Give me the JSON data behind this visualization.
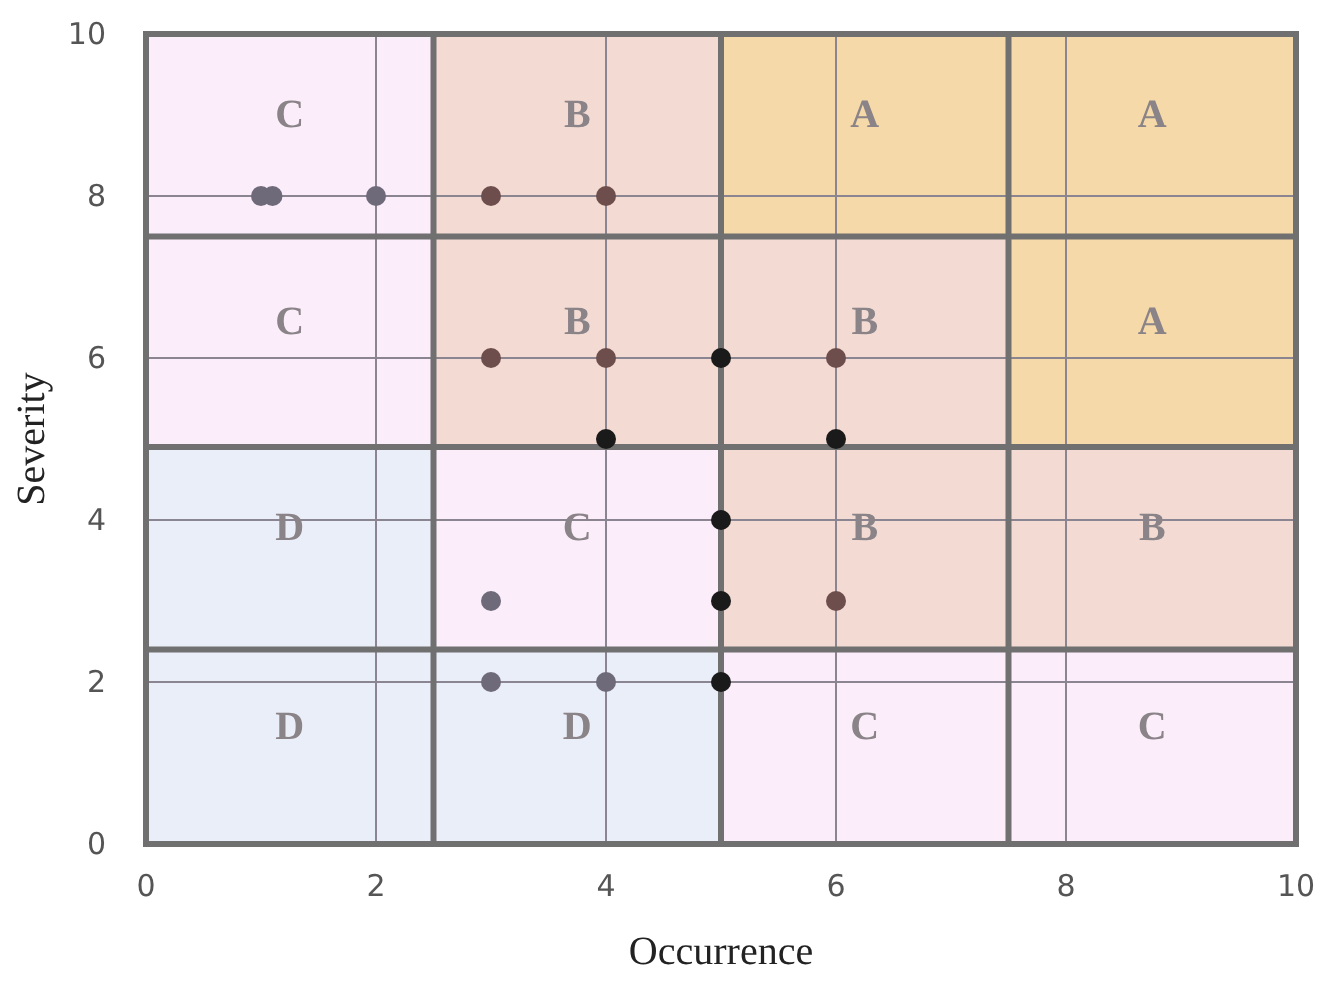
{
  "chart_data": {
    "type": "scatter",
    "xlabel": "Occurrence",
    "ylabel": "Severity",
    "xlim": [
      0,
      10
    ],
    "ylim": [
      0,
      10
    ],
    "xticks": [
      0,
      2,
      4,
      6,
      8,
      10
    ],
    "yticks": [
      0,
      2,
      4,
      6,
      8,
      10
    ],
    "grid": true,
    "marker": "circle",
    "series": [
      {
        "x": [
          1,
          1.1,
          2,
          3,
          4,
          3,
          4,
          5,
          6,
          4,
          6,
          5,
          5,
          3,
          6,
          3,
          4,
          5
        ],
        "values": [
          8,
          8,
          8,
          8,
          8,
          6,
          6,
          6,
          6,
          5,
          5,
          4,
          3,
          3,
          3,
          2,
          2,
          2
        ],
        "colors": [
          "#6e6a7a",
          "#6e6a7a",
          "#6e6a7a",
          "#6e4e4c",
          "#6e4e4c",
          "#6e4e4c",
          "#6e4e4c",
          "#1a1a1a",
          "#6e4e4c",
          "#1a1a1a",
          "#1a1a1a",
          "#1a1a1a",
          "#1a1a1a",
          "#6e6a7a",
          "#6e4e4c",
          "#6e6a7a",
          "#6e6a7a",
          "#1a1a1a"
        ]
      }
    ],
    "ref_lines": [
      {
        "axis": "x",
        "value": 2.5
      },
      {
        "axis": "x",
        "value": 5
      },
      {
        "axis": "x",
        "value": 7.5
      },
      {
        "axis": "y",
        "value": 2.4
      },
      {
        "axis": "y",
        "value": 4.9
      },
      {
        "axis": "y",
        "value": 7.5
      }
    ],
    "annotations": [
      "C",
      "B",
      "A",
      "A",
      "C",
      "B",
      "B",
      "A",
      "D",
      "C",
      "B",
      "B",
      "D",
      "D",
      "C",
      "C"
    ]
  }
}
